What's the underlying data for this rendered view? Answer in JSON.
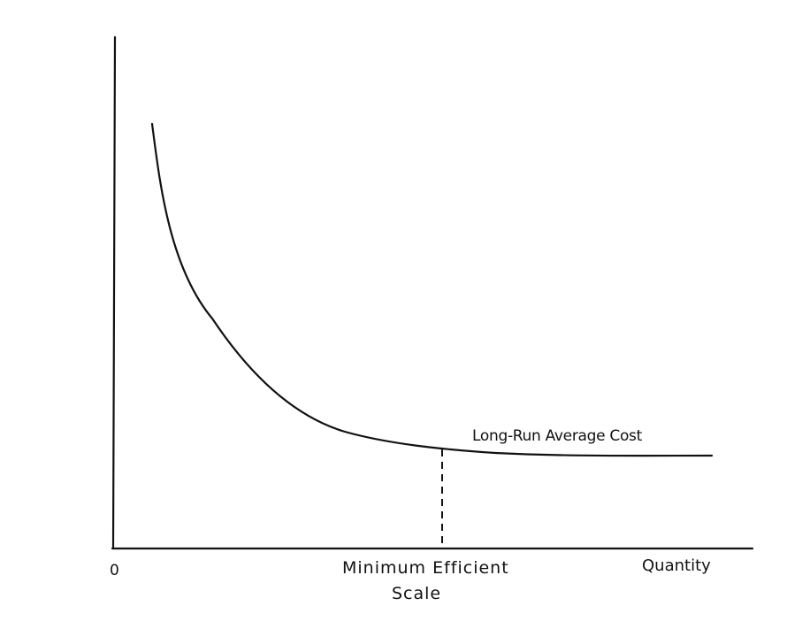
{
  "diagram": {
    "origin_label": "0",
    "x_axis_label": "Quantity",
    "marker_label_line1": "Minimum Efficient",
    "marker_label_line2": "Scale",
    "curve_label": "Long-Run Average Cost",
    "ink_color": "#111111",
    "background_color": "#ffffff"
  }
}
